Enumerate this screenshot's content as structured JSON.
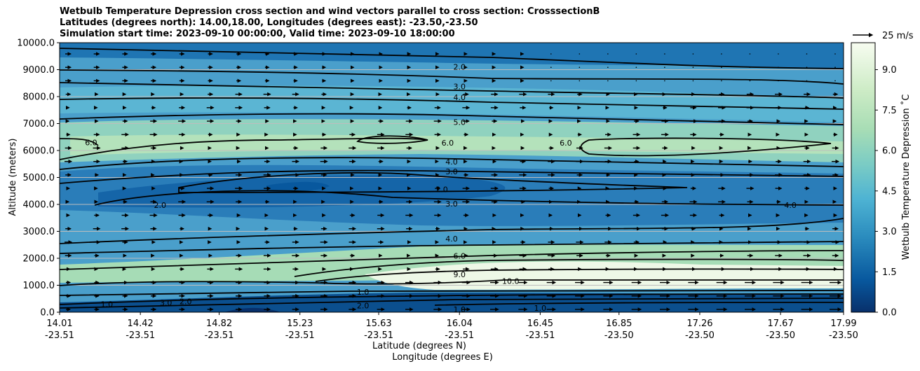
{
  "chart_data": {
    "type": "contourf",
    "title_lines": [
      "Wetbulb Temperature Depression cross section and wind vectors parallel to cross section: CrosssectionB",
      "Latitudes (degrees north): 14.00,18.00, Longitudes (degrees east): -23.50,-23.50",
      "Simulation start time: 2023-09-10 00:00:00, Valid time: 2023-09-10 18:00:00"
    ],
    "ylabel": "Altitude (meters)",
    "xlabel_lat": "Latitude (degrees N)",
    "xlabel_lon": "Longitude (degrees E)",
    "ylim": [
      0,
      10000
    ],
    "yticks": [
      "0.0",
      "1000.0",
      "2000.0",
      "3000.0",
      "4000.0",
      "5000.0",
      "6000.0",
      "7000.0",
      "8000.0",
      "9000.0",
      "10000.0"
    ],
    "xticks": [
      {
        "lat": "14.01",
        "lon": "-23.51"
      },
      {
        "lat": "14.42",
        "lon": "-23.51"
      },
      {
        "lat": "14.82",
        "lon": "-23.51"
      },
      {
        "lat": "15.23",
        "lon": "-23.51"
      },
      {
        "lat": "15.63",
        "lon": "-23.51"
      },
      {
        "lat": "16.04",
        "lon": "-23.51"
      },
      {
        "lat": "16.45",
        "lon": "-23.51"
      },
      {
        "lat": "16.85",
        "lon": "-23.50"
      },
      {
        "lat": "17.26",
        "lon": "-23.50"
      },
      {
        "lat": "17.67",
        "lon": "-23.50"
      },
      {
        "lat": "17.99",
        "lon": "-23.50"
      }
    ],
    "grid": "horizontal",
    "colorbar": {
      "label": "Wetbulb Temperature Depression ˚C",
      "ticks": [
        "0.0",
        "1.5",
        "3.0",
        "4.5",
        "6.0",
        "7.5",
        "9.0"
      ],
      "range": [
        0,
        10
      ],
      "colormap": [
        "#08589e",
        "#2b8cbe",
        "#4eb3d3",
        "#7bccc4",
        "#a8ddb5",
        "#ccebc5",
        "#f7fcf0"
      ]
    },
    "quiver_key": "25 m/s",
    "contour_labels": [
      {
        "text": "2.0",
        "x": 16.04,
        "y": 9100
      },
      {
        "text": "3.0",
        "x": 16.04,
        "y": 8380
      },
      {
        "text": "4.0",
        "x": 16.04,
        "y": 7970
      },
      {
        "text": "5.0",
        "x": 16.04,
        "y": 7050
      },
      {
        "text": "6.0",
        "x": 14.17,
        "y": 6300
      },
      {
        "text": "6.0",
        "x": 15.98,
        "y": 6280
      },
      {
        "text": "6.0",
        "x": 16.58,
        "y": 6290
      },
      {
        "text": "4.0",
        "x": 16.0,
        "y": 5580
      },
      {
        "text": "3.0",
        "x": 16.0,
        "y": 5220
      },
      {
        "text": "2.0",
        "x": 15.95,
        "y": 4560
      },
      {
        "text": "2.0",
        "x": 14.52,
        "y": 3970
      },
      {
        "text": "3.0",
        "x": 16.0,
        "y": 4030
      },
      {
        "text": "4.0",
        "x": 17.72,
        "y": 3970
      },
      {
        "text": "4.0",
        "x": 16.0,
        "y": 2730
      },
      {
        "text": "6.0",
        "x": 16.04,
        "y": 2090
      },
      {
        "text": "9.0",
        "x": 16.04,
        "y": 1400
      },
      {
        "text": "10.0",
        "x": 16.3,
        "y": 1150
      },
      {
        "text": "2.0",
        "x": 14.65,
        "y": 400
      },
      {
        "text": "3.0",
        "x": 14.55,
        "y": 350
      },
      {
        "text": "1.0",
        "x": 14.25,
        "y": 300
      },
      {
        "text": "1.0",
        "x": 15.55,
        "y": 750
      },
      {
        "text": "2.0",
        "x": 15.55,
        "y": 250
      },
      {
        "text": "1.0",
        "x": 16.04,
        "y": 100
      },
      {
        "text": "1.0",
        "x": 16.45,
        "y": 150
      }
    ]
  }
}
